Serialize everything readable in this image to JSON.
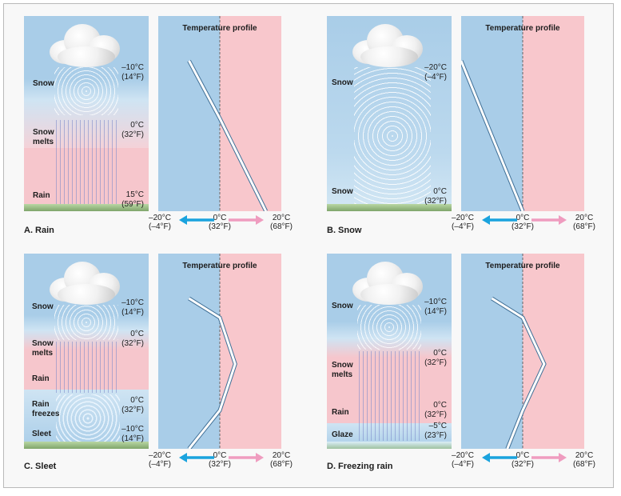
{
  "chart_title": "Temperature profile",
  "axis_ticks": [
    {
      "c": "–20°C",
      "f": "(–4°F)"
    },
    {
      "c": "0°C",
      "f": "(32°F)"
    },
    {
      "c": "20°C",
      "f": "(68°F)"
    }
  ],
  "colors": {
    "cold": "#a9cde8",
    "warm": "#f8c7cc",
    "freeze_line": "#666666",
    "profile_line": "#ffffff",
    "arrow_cold": "#1aa3de",
    "arrow_warm": "#ef9cbf"
  },
  "panels": [
    {
      "caption": "A. Rain",
      "layer_labels": [
        "Snow",
        "Snow\nmelts",
        "Rain"
      ],
      "temp_labels": [
        "–10°C\n(14°F)",
        "0°C\n(32°F)",
        "15°C\n(59°F)"
      ],
      "chart_data": {
        "type": "line",
        "x": [
          -10,
          0,
          15
        ],
        "y_levels": [
          "upper",
          "middle",
          "surface"
        ],
        "xlim": [
          -20,
          20
        ]
      }
    },
    {
      "caption": "B. Snow",
      "layer_labels": [
        "Snow",
        "Snow"
      ],
      "temp_labels": [
        "–20°C\n(–4°F)",
        "0°C\n(32°F)"
      ],
      "chart_data": {
        "type": "line",
        "x": [
          -20,
          0
        ],
        "y_levels": [
          "upper",
          "surface"
        ],
        "xlim": [
          -20,
          20
        ]
      }
    },
    {
      "caption": "C. Sleet",
      "layer_labels": [
        "Snow",
        "Snow\nmelts",
        "Rain",
        "Rain\nfreezes",
        "Sleet"
      ],
      "temp_labels": [
        "–10°C\n(14°F)",
        "0°C\n(32°F)",
        "0°C\n(32°F)",
        "–10°C\n(14°F)"
      ],
      "chart_data": {
        "type": "line",
        "x": [
          -10,
          0,
          5,
          0,
          -10
        ],
        "y_levels": [
          "upper",
          "melt",
          "warm-peak",
          "refreeze",
          "surface"
        ],
        "xlim": [
          -20,
          20
        ]
      }
    },
    {
      "caption": "D. Freezing rain",
      "layer_labels": [
        "Snow",
        "Snow\nmelts",
        "Rain",
        "Glaze"
      ],
      "temp_labels": [
        "–10°C\n(14°F)",
        "0°C\n(32°F)",
        "0°C\n(32°F)",
        "–5°C\n(23°F)"
      ],
      "chart_data": {
        "type": "line",
        "x": [
          -10,
          0,
          7,
          0,
          -5
        ],
        "y_levels": [
          "upper",
          "melt",
          "warm-peak",
          "refreeze",
          "surface"
        ],
        "xlim": [
          -20,
          20
        ]
      }
    }
  ]
}
